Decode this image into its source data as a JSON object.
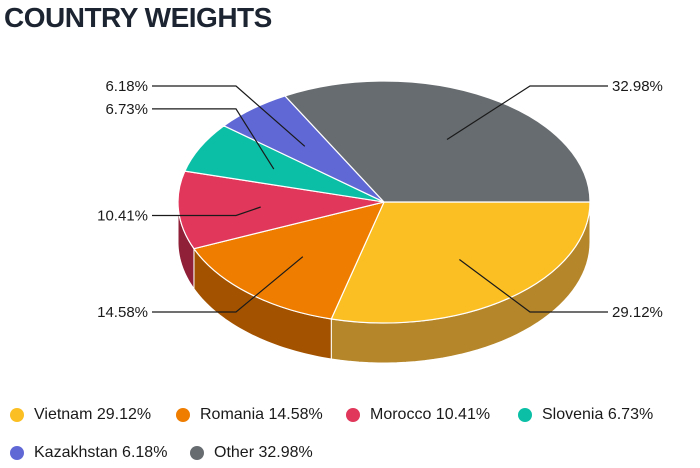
{
  "header": {
    "title": "COUNTRY WEIGHTS"
  },
  "chart_data": {
    "type": "pie",
    "title": "COUNTRY WEIGHTS",
    "slices": [
      {
        "name": "Vietnam",
        "value": 29.12,
        "label": "29.12%",
        "legend": "Vietnam 29.12%",
        "color": "#fbbf24",
        "side": "#b5862a"
      },
      {
        "name": "Romania",
        "value": 14.58,
        "label": "14.58%",
        "legend": "Romania 14.58%",
        "color": "#ee7d00",
        "side": "#a35300"
      },
      {
        "name": "Morocco",
        "value": 10.41,
        "label": "10.41%",
        "legend": "Morocco 10.41%",
        "color": "#e0375a",
        "side": "#8f2038"
      },
      {
        "name": "Slovenia",
        "value": 6.73,
        "label": "6.73%",
        "legend": "Slovenia 6.73%",
        "color": "#0bbfa6",
        "side": "#0a7a6b"
      },
      {
        "name": "Kazakhstan",
        "value": 6.18,
        "label": "6.18%",
        "legend": "Kazakhstan 6.18%",
        "color": "#6068d6",
        "side": "#3d4389"
      },
      {
        "name": "Other",
        "value": 32.98,
        "label": "32.98%",
        "legend": "Other 32.98%",
        "color": "#676c70",
        "side": "#43474a"
      }
    ],
    "legend_position": "bottom"
  }
}
